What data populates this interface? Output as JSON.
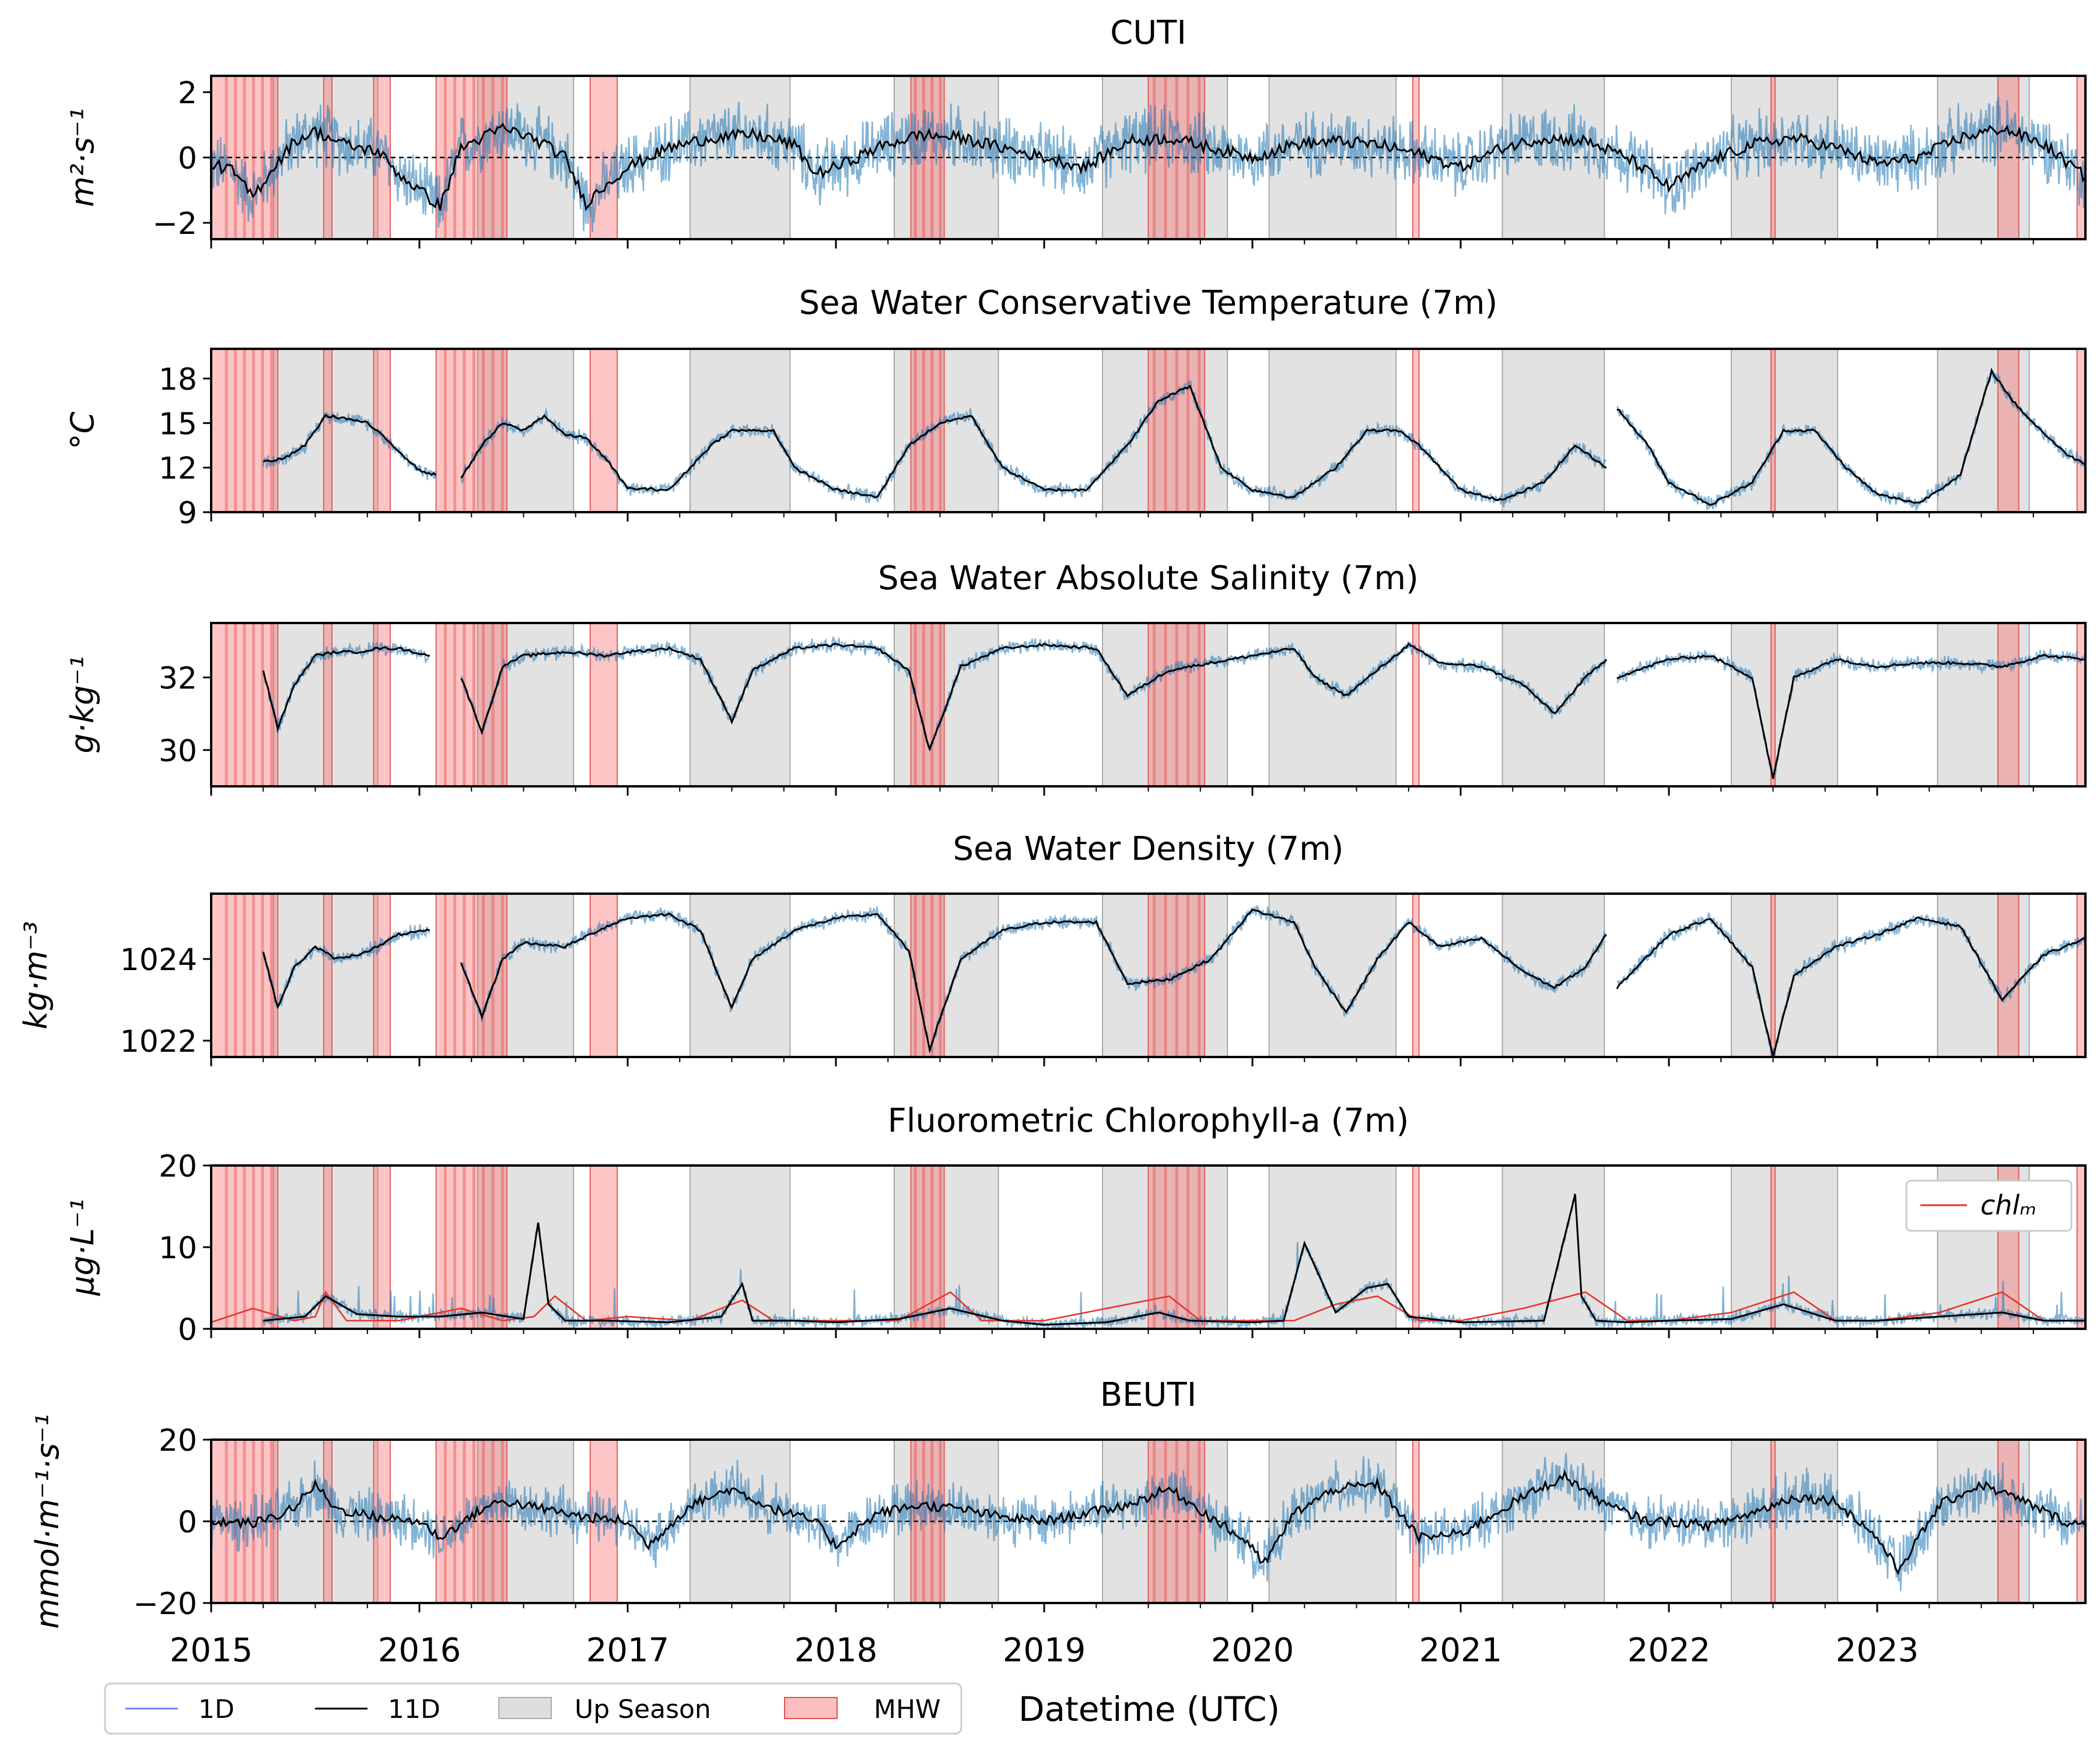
{
  "colors": {
    "raw_1d": "#1f77b4",
    "smooth_11d": "#000000",
    "up_season": "#bbbbbb",
    "mhw": "#f46f6f",
    "chl_m": "#e8322a",
    "legend_1d": "#7b7bff"
  },
  "xaxis": {
    "label": "Datetime (UTC)",
    "ticks": [
      "2015",
      "2016",
      "2017",
      "2018",
      "2019",
      "2020",
      "2021",
      "2022",
      "2023"
    ]
  },
  "legend": {
    "placement": "bottom-left",
    "items": [
      {
        "label": "1D",
        "kind": "line"
      },
      {
        "label": "11D",
        "kind": "line"
      },
      {
        "label": "Up Season",
        "kind": "patch"
      },
      {
        "label": "MHW",
        "kind": "patch"
      }
    ]
  },
  "chart_data": [
    {
      "type": "line",
      "title": "CUTI",
      "ylabel": "m²·s⁻¹",
      "ylim": [
        -2.5,
        2.5
      ],
      "yticks": [
        -2,
        0,
        2
      ],
      "tick_labels": [
        "−2",
        "0",
        "2"
      ],
      "zero_line": true,
      "smooth_11d": {
        "x": [
          2015.0,
          2015.1,
          2015.2,
          2015.3,
          2015.4,
          2015.5,
          2015.6,
          2015.7,
          2015.8,
          2015.9,
          2016.0,
          2016.1,
          2016.2,
          2016.3,
          2016.4,
          2016.5,
          2016.6,
          2016.7,
          2016.8,
          2016.9,
          2017.0,
          2017.2,
          2017.4,
          2017.6,
          2017.8,
          2017.9,
          2018.0,
          2018.2,
          2018.4,
          2018.6,
          2018.8,
          2019.0,
          2019.2,
          2019.4,
          2019.6,
          2019.8,
          2020.0,
          2020.2,
          2020.4,
          2020.6,
          2020.8,
          2021.0,
          2021.2,
          2021.4,
          2021.6,
          2021.8,
          2022.0,
          2022.2,
          2022.4,
          2022.6,
          2022.8,
          2023.0,
          2023.2,
          2023.4,
          2023.6,
          2023.8,
          2024.0
        ],
        "y": [
          -0.2,
          -0.4,
          -1.2,
          -0.3,
          0.5,
          0.8,
          0.5,
          0.3,
          0.2,
          -0.5,
          -1.0,
          -1.5,
          0.3,
          0.6,
          0.9,
          0.7,
          0.4,
          0.0,
          -1.4,
          -0.8,
          -0.3,
          0.3,
          0.6,
          0.7,
          0.4,
          -0.5,
          -0.3,
          0.3,
          0.7,
          0.6,
          0.3,
          0.0,
          -0.3,
          0.5,
          0.6,
          0.3,
          0.0,
          0.4,
          0.5,
          0.4,
          0.1,
          -0.3,
          0.3,
          0.6,
          0.5,
          0.0,
          -0.9,
          -0.1,
          0.4,
          0.6,
          0.3,
          -0.2,
          0.0,
          0.6,
          0.9,
          0.4,
          -0.6
        ]
      }
    },
    {
      "type": "line",
      "title": "Sea Water Conservative Temperature (7m)",
      "ylabel": "°C",
      "ylim": [
        9,
        20
      ],
      "yticks": [
        9,
        12,
        15,
        18
      ],
      "tick_labels": [
        "9",
        "12",
        "15",
        "18"
      ],
      "smooth_11d": {
        "x": [
          2015.25,
          2015.35,
          2015.45,
          2015.55,
          2015.65,
          2015.75,
          2015.85,
          2016.0,
          2016.08,
          null,
          2016.2,
          2016.3,
          2016.4,
          2016.5,
          2016.6,
          2016.7,
          2016.8,
          2016.9,
          2017.0,
          2017.2,
          2017.4,
          2017.5,
          2017.7,
          2017.8,
          2018.0,
          2018.2,
          2018.35,
          2018.5,
          2018.65,
          2018.8,
          2019.0,
          2019.2,
          2019.4,
          2019.55,
          2019.7,
          2019.85,
          2020.0,
          2020.2,
          2020.4,
          2020.55,
          2020.7,
          2020.8,
          2021.0,
          2021.2,
          2021.4,
          2021.55,
          2021.7,
          null,
          2021.75,
          2021.9,
          2022.0,
          2022.2,
          2022.4,
          2022.55,
          2022.7,
          2022.85,
          2023.0,
          2023.2,
          2023.4,
          2023.55,
          2023.65,
          2023.75,
          2023.9,
          2024.0
        ],
        "y": [
          12.4,
          12.6,
          13.5,
          15.5,
          15.3,
          15.0,
          13.8,
          11.8,
          11.5,
          null,
          11.3,
          13.5,
          15.0,
          14.5,
          15.5,
          14.2,
          14.0,
          12.5,
          10.6,
          10.5,
          13.5,
          14.5,
          14.5,
          12.0,
          10.5,
          10.0,
          13.5,
          15.0,
          15.5,
          12.0,
          10.5,
          10.5,
          13.5,
          16.5,
          17.5,
          12.0,
          10.5,
          10.0,
          12.0,
          14.5,
          14.5,
          13.5,
          10.5,
          9.8,
          11.0,
          13.5,
          12.0,
          null,
          16.0,
          13.5,
          11.0,
          9.5,
          11.0,
          14.5,
          14.5,
          12.0,
          10.2,
          9.6,
          11.5,
          18.5,
          16.5,
          15.0,
          13.0,
          12.2
        ]
      }
    },
    {
      "type": "line",
      "title": "Sea Water Absolute Salinity (7m)",
      "ylabel": "g·kg⁻¹",
      "ylim": [
        29,
        33.5
      ],
      "yticks": [
        30,
        32
      ],
      "tick_labels": [
        "30",
        "32"
      ],
      "smooth_11d": {
        "x": [
          2015.25,
          2015.32,
          2015.4,
          2015.5,
          2015.6,
          2015.7,
          2015.8,
          2015.9,
          2016.05,
          null,
          2016.2,
          2016.3,
          2016.4,
          2016.5,
          2016.7,
          2016.9,
          2017.0,
          2017.2,
          2017.35,
          2017.5,
          2017.6,
          2017.8,
          2018.0,
          2018.2,
          2018.35,
          2018.45,
          2018.6,
          2018.8,
          2019.0,
          2019.25,
          2019.4,
          2019.6,
          2019.8,
          2020.0,
          2020.2,
          2020.3,
          2020.45,
          2020.6,
          2020.75,
          2020.9,
          2021.1,
          2021.3,
          2021.45,
          2021.6,
          2021.7,
          null,
          2021.75,
          2022.0,
          2022.2,
          2022.4,
          2022.5,
          2022.6,
          2022.8,
          2023.0,
          2023.2,
          2023.4,
          2023.6,
          2023.8,
          2024.0
        ],
        "y": [
          32.2,
          30.6,
          31.8,
          32.6,
          32.7,
          32.7,
          32.8,
          32.8,
          32.6,
          null,
          32.0,
          30.5,
          32.3,
          32.6,
          32.7,
          32.6,
          32.7,
          32.8,
          32.5,
          30.8,
          32.2,
          32.8,
          32.9,
          32.8,
          32.2,
          30.0,
          32.3,
          32.8,
          32.9,
          32.8,
          31.5,
          32.2,
          32.4,
          32.6,
          32.8,
          32.0,
          31.5,
          32.2,
          32.9,
          32.4,
          32.3,
          31.8,
          31.0,
          32.0,
          32.5,
          null,
          32.0,
          32.5,
          32.6,
          32.0,
          29.2,
          32.0,
          32.5,
          32.3,
          32.4,
          32.4,
          32.3,
          32.6,
          32.5
        ]
      }
    },
    {
      "type": "line",
      "title": "Sea Water Density (7m)",
      "ylabel": "kg·m⁻³",
      "ylim": [
        1021.6,
        1025.6
      ],
      "yticks": [
        1022,
        1024
      ],
      "tick_labels": [
        "1022",
        "1024"
      ],
      "smooth_11d": {
        "x": [
          2015.25,
          2015.32,
          2015.4,
          2015.5,
          2015.6,
          2015.7,
          2015.8,
          2015.9,
          2016.05,
          null,
          2016.2,
          2016.3,
          2016.4,
          2016.5,
          2016.7,
          2016.9,
          2017.0,
          2017.2,
          2017.35,
          2017.5,
          2017.6,
          2017.8,
          2018.0,
          2018.2,
          2018.35,
          2018.45,
          2018.6,
          2018.8,
          2019.0,
          2019.25,
          2019.4,
          2019.6,
          2019.8,
          2020.0,
          2020.2,
          2020.3,
          2020.45,
          2020.6,
          2020.75,
          2020.9,
          2021.1,
          2021.3,
          2021.45,
          2021.6,
          2021.7,
          null,
          2021.75,
          2022.0,
          2022.2,
          2022.4,
          2022.5,
          2022.6,
          2022.8,
          2023.0,
          2023.2,
          2023.4,
          2023.6,
          2023.8,
          2024.0
        ],
        "y": [
          1024.2,
          1022.8,
          1023.8,
          1024.3,
          1024.0,
          1024.1,
          1024.3,
          1024.6,
          1024.7,
          null,
          1023.9,
          1022.6,
          1024.0,
          1024.4,
          1024.3,
          1024.8,
          1025.0,
          1025.1,
          1024.7,
          1022.8,
          1024.0,
          1024.7,
          1025.0,
          1025.1,
          1024.2,
          1021.8,
          1024.0,
          1024.7,
          1024.9,
          1024.9,
          1023.4,
          1023.5,
          1024.0,
          1025.2,
          1024.9,
          1023.8,
          1022.7,
          1024.0,
          1024.9,
          1024.3,
          1024.5,
          1023.7,
          1023.3,
          1023.8,
          1024.6,
          null,
          1023.3,
          1024.6,
          1025.0,
          1023.8,
          1021.6,
          1023.6,
          1024.3,
          1024.6,
          1025.0,
          1024.8,
          1023.0,
          1024.1,
          1024.5
        ]
      }
    },
    {
      "type": "line",
      "title": "Fluorometric Chlorophyll-a (7m)",
      "ylabel": "μg·L⁻¹",
      "ylim": [
        0,
        20
      ],
      "yticks": [
        0,
        10,
        20
      ],
      "tick_labels": [
        "0",
        "10",
        "20"
      ],
      "series_legend": "chlₘ",
      "smooth_11d": {
        "x": [
          2015.25,
          2015.45,
          2015.55,
          2015.7,
          2015.9,
          2016.1,
          2016.3,
          2016.5,
          2016.57,
          2016.62,
          2016.7,
          2016.9,
          2017.2,
          2017.45,
          2017.55,
          2017.6,
          2017.8,
          2018.0,
          2018.3,
          2018.55,
          2018.8,
          2019.0,
          2019.3,
          2019.55,
          2019.7,
          2020.0,
          2020.15,
          2020.25,
          2020.4,
          2020.55,
          2020.65,
          2020.75,
          2021.0,
          2021.4,
          2021.55,
          2021.58,
          2021.65,
          2021.8,
          2022.0,
          2022.3,
          2022.55,
          2022.8,
          2023.0,
          2023.3,
          2023.6,
          2023.8,
          2024.0
        ],
        "y": [
          1.0,
          1.5,
          4.0,
          1.8,
          1.5,
          1.5,
          2.0,
          1.2,
          13.0,
          3.0,
          1.0,
          1.0,
          0.8,
          1.5,
          5.5,
          1.0,
          1.0,
          0.8,
          1.2,
          2.5,
          1.0,
          0.5,
          0.8,
          2.0,
          1.0,
          0.8,
          1.0,
          10.5,
          2.0,
          5.0,
          5.5,
          1.5,
          0.8,
          1.0,
          16.5,
          4.0,
          1.0,
          0.8,
          1.0,
          1.2,
          3.0,
          1.0,
          1.0,
          1.5,
          2.0,
          1.0,
          1.0
        ]
      },
      "chl_m": {
        "x": [
          2015.0,
          2015.2,
          2015.4,
          2015.5,
          2015.55,
          2015.65,
          2015.9,
          2016.2,
          2016.4,
          2016.55,
          2016.65,
          2016.8,
          2017.0,
          2017.3,
          2017.55,
          2017.7,
          2018.0,
          2018.3,
          2018.55,
          2018.7,
          2019.0,
          2019.3,
          2019.6,
          2019.75,
          2020.0,
          2020.2,
          2020.4,
          2020.6,
          2020.8,
          2021.0,
          2021.3,
          2021.6,
          2021.8,
          2022.0,
          2022.3,
          2022.6,
          2022.8,
          2023.0,
          2023.3,
          2023.6,
          2023.8,
          2024.0
        ],
        "y": [
          0.8,
          2.5,
          1.0,
          1.5,
          4.5,
          1.0,
          1.0,
          2.5,
          1.0,
          1.5,
          4.0,
          1.0,
          1.5,
          1.0,
          3.5,
          1.0,
          1.0,
          1.0,
          4.5,
          1.0,
          1.0,
          2.5,
          4.0,
          1.0,
          1.0,
          1.0,
          3.0,
          4.0,
          1.0,
          1.0,
          2.5,
          4.5,
          1.0,
          1.0,
          2.0,
          4.5,
          1.0,
          1.0,
          2.0,
          4.5,
          1.0,
          1.0
        ]
      }
    },
    {
      "type": "line",
      "title": "BEUTI",
      "ylabel": "mmol·m⁻¹·s⁻¹",
      "ylim": [
        -20,
        20
      ],
      "yticks": [
        -20,
        0,
        20
      ],
      "tick_labels": [
        "−20",
        "0",
        "20"
      ],
      "zero_line": true,
      "smooth_11d": {
        "x": [
          2015.0,
          2015.2,
          2015.3,
          2015.4,
          2015.5,
          2015.6,
          2015.8,
          2016.0,
          2016.1,
          2016.3,
          2016.4,
          2016.6,
          2016.8,
          2017.0,
          2017.1,
          2017.3,
          2017.5,
          2017.7,
          2017.9,
          2018.0,
          2018.2,
          2018.4,
          2018.6,
          2018.8,
          2019.0,
          2019.2,
          2019.4,
          2019.6,
          2019.8,
          2020.0,
          2020.05,
          2020.2,
          2020.4,
          2020.6,
          2020.8,
          2021.0,
          2021.3,
          2021.5,
          2021.7,
          2021.9,
          2022.0,
          2022.2,
          2022.4,
          2022.6,
          2022.8,
          2023.0,
          2023.1,
          2023.3,
          2023.5,
          2023.7,
          2023.9,
          2024.0
        ],
        "y": [
          0,
          -0.5,
          1.0,
          3.5,
          9.0,
          3.0,
          1.0,
          0,
          -4.0,
          3.0,
          5.0,
          3.0,
          1.0,
          0,
          -6.0,
          4.0,
          8.0,
          3.0,
          0,
          -6.0,
          2.0,
          4.0,
          3.0,
          1.0,
          0,
          2.0,
          4.0,
          8.0,
          1.0,
          -6.0,
          -11.0,
          2.0,
          8.0,
          9.0,
          -4.0,
          -3.0,
          6.0,
          11.0,
          4.0,
          0,
          0,
          -1.0,
          2.0,
          6.0,
          5.0,
          -4.0,
          -12.0,
          4.0,
          9.0,
          5.0,
          0,
          -1.0
        ]
      }
    }
  ]
}
